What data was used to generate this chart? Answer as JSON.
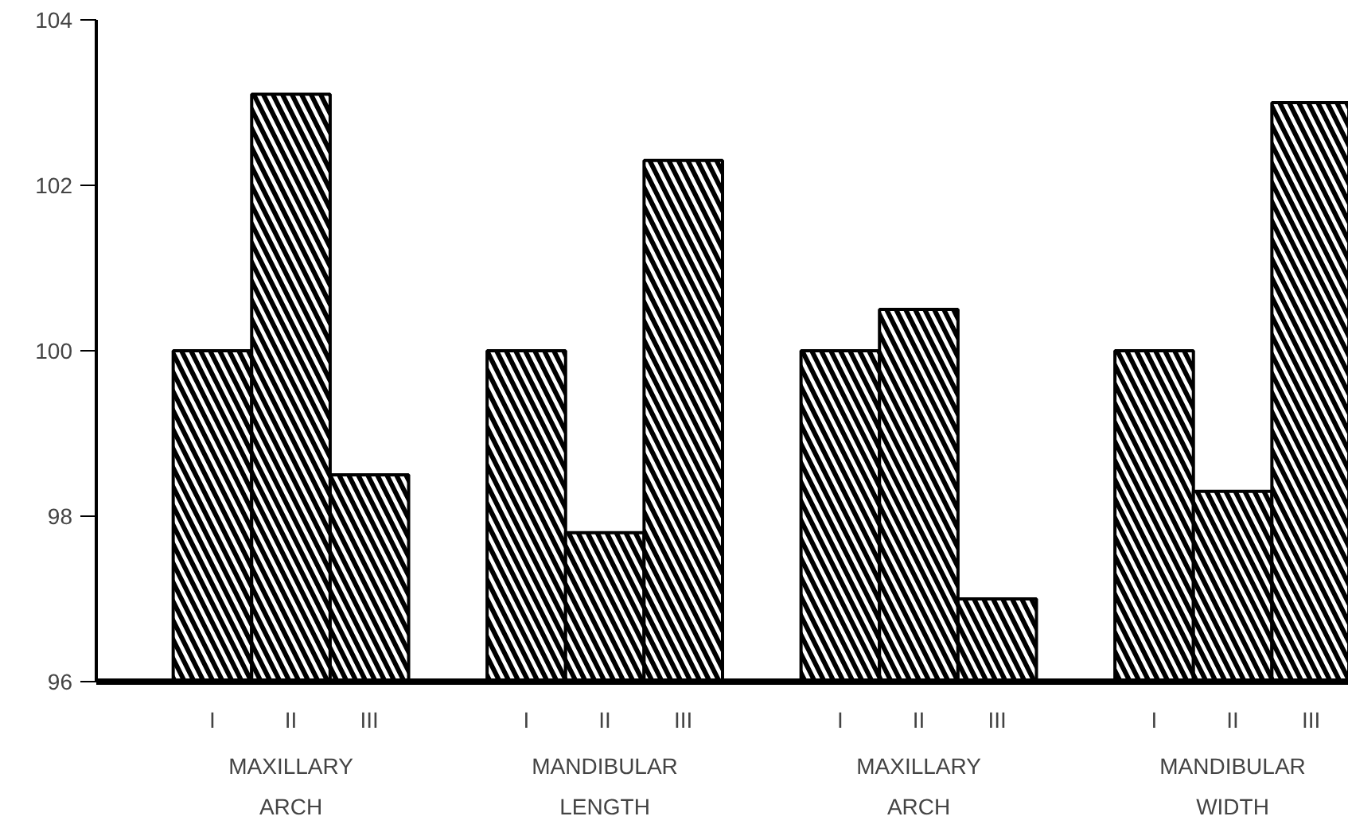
{
  "chart_data": {
    "type": "bar",
    "categories": [
      "MAXILLARY ARCH",
      "MANDIBULAR LENGTH",
      "MAXILLARY ARCH",
      "MANDIBULAR WIDTH"
    ],
    "series": [
      {
        "name": "I",
        "color": "#000000",
        "values": [
          100.0,
          100.0,
          100.0,
          100.0
        ]
      },
      {
        "name": "II",
        "color": "#000000",
        "values": [
          103.1,
          97.8,
          100.5,
          98.3
        ]
      },
      {
        "name": "III",
        "color": "#000000",
        "values": [
          98.5,
          102.3,
          97.0,
          103.0
        ]
      }
    ],
    "ylim": [
      96,
      104
    ],
    "yticks": [
      96,
      98,
      100,
      102,
      104
    ],
    "grid": false
  }
}
